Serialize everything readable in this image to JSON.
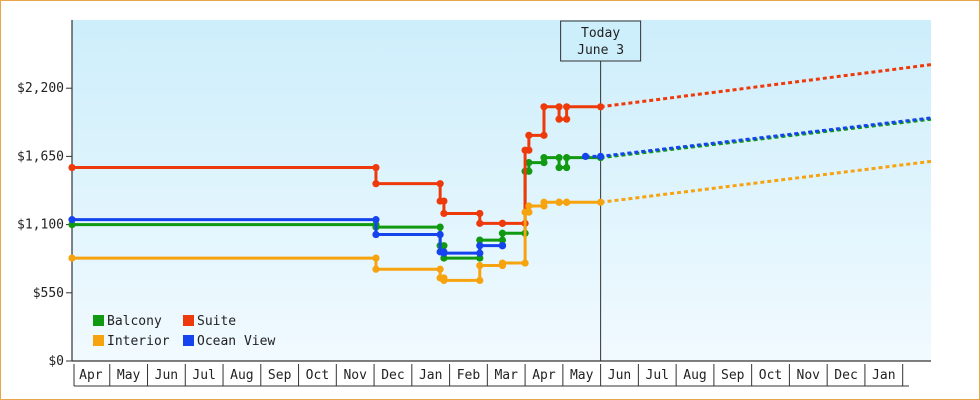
{
  "chart_data": {
    "type": "line",
    "title": "",
    "xlabel": "",
    "ylabel": "",
    "ylim": [
      0,
      2750
    ],
    "y_ticks": [
      {
        "value": 0,
        "label": "$0"
      },
      {
        "value": 550,
        "label": "$550"
      },
      {
        "value": 1100,
        "label": "$1,100"
      },
      {
        "value": 1650,
        "label": "$1,650"
      },
      {
        "value": 2200,
        "label": "$2,200"
      }
    ],
    "x_range": [
      0,
      22.75
    ],
    "x_ticks": [
      {
        "label": "Apr",
        "x": 0.5
      },
      {
        "label": "May",
        "x": 1.5
      },
      {
        "label": "Jun",
        "x": 2.5
      },
      {
        "label": "Jul",
        "x": 3.5
      },
      {
        "label": "Aug",
        "x": 4.5
      },
      {
        "label": "Sep",
        "x": 5.5
      },
      {
        "label": "Oct",
        "x": 6.5
      },
      {
        "label": "Nov",
        "x": 7.5
      },
      {
        "label": "Dec",
        "x": 8.5
      },
      {
        "label": "Jan",
        "x": 9.5
      },
      {
        "label": "Feb",
        "x": 10.5
      },
      {
        "label": "Mar",
        "x": 11.5
      },
      {
        "label": "Apr",
        "x": 12.5
      },
      {
        "label": "May",
        "x": 13.5
      },
      {
        "label": "Jun",
        "x": 14.5
      },
      {
        "label": "Jul",
        "x": 15.5
      },
      {
        "label": "Aug",
        "x": 16.5
      },
      {
        "label": "Sep",
        "x": 17.5
      },
      {
        "label": "Oct",
        "x": 18.5
      },
      {
        "label": "Nov",
        "x": 19.5
      },
      {
        "label": "Dec",
        "x": 20.5
      },
      {
        "label": "Jan",
        "x": 21.5
      }
    ],
    "today": {
      "x": 14.0,
      "line1": "Today",
      "line2": "June 3"
    },
    "grid": false,
    "legend": {
      "position": "bottom-left"
    },
    "series": [
      {
        "name": "Balcony",
        "color": "#119911",
        "points": [
          [
            0,
            1100
          ],
          [
            8.05,
            1100
          ],
          [
            8.05,
            1080
          ],
          [
            9.75,
            1080
          ],
          [
            9.75,
            930
          ],
          [
            9.85,
            930
          ],
          [
            9.85,
            830
          ],
          [
            10.8,
            830
          ],
          [
            10.8,
            975
          ],
          [
            11.4,
            975
          ],
          [
            11.4,
            1030
          ],
          [
            12.0,
            1030
          ],
          [
            12.0,
            1530
          ],
          [
            12.1,
            1530
          ],
          [
            12.1,
            1600
          ],
          [
            12.5,
            1600
          ],
          [
            12.5,
            1640
          ],
          [
            12.9,
            1640
          ],
          [
            12.9,
            1560
          ],
          [
            13.1,
            1560
          ],
          [
            13.1,
            1640
          ],
          [
            14.0,
            1640
          ]
        ],
        "projection": [
          [
            14.0,
            1640
          ],
          [
            22.75,
            1950
          ]
        ]
      },
      {
        "name": "Suite",
        "color": "#ee3a0a",
        "points": [
          [
            0,
            1560
          ],
          [
            8.05,
            1560
          ],
          [
            8.05,
            1430
          ],
          [
            9.75,
            1430
          ],
          [
            9.75,
            1290
          ],
          [
            9.85,
            1290
          ],
          [
            9.85,
            1190
          ],
          [
            10.8,
            1190
          ],
          [
            10.8,
            1110
          ],
          [
            11.4,
            1110
          ],
          [
            11.4,
            1110
          ],
          [
            12.0,
            1110
          ],
          [
            12.0,
            1700
          ],
          [
            12.1,
            1700
          ],
          [
            12.1,
            1820
          ],
          [
            12.5,
            1820
          ],
          [
            12.5,
            2050
          ],
          [
            12.9,
            2050
          ],
          [
            12.9,
            1950
          ],
          [
            13.1,
            1950
          ],
          [
            13.1,
            2050
          ],
          [
            14.0,
            2050
          ]
        ],
        "projection": [
          [
            14.0,
            2050
          ],
          [
            22.75,
            2390
          ]
        ]
      },
      {
        "name": "Interior",
        "color": "#f7a30f",
        "points": [
          [
            0,
            830
          ],
          [
            8.05,
            830
          ],
          [
            8.05,
            740
          ],
          [
            9.75,
            740
          ],
          [
            9.75,
            670
          ],
          [
            9.85,
            670
          ],
          [
            9.85,
            650
          ],
          [
            10.8,
            650
          ],
          [
            10.8,
            770
          ],
          [
            11.4,
            770
          ],
          [
            11.4,
            790
          ],
          [
            12.0,
            790
          ],
          [
            12.0,
            1200
          ],
          [
            12.1,
            1200
          ],
          [
            12.1,
            1250
          ],
          [
            12.5,
            1250
          ],
          [
            12.5,
            1280
          ],
          [
            12.9,
            1280
          ],
          [
            12.9,
            1280
          ],
          [
            13.1,
            1280
          ],
          [
            13.1,
            1280
          ],
          [
            14.0,
            1280
          ]
        ],
        "projection": [
          [
            14.0,
            1280
          ],
          [
            22.75,
            1610
          ]
        ]
      },
      {
        "name": "Ocean View",
        "color": "#1544ee",
        "points": [
          [
            0,
            1140
          ],
          [
            8.05,
            1140
          ],
          [
            8.05,
            1020
          ],
          [
            9.75,
            1020
          ],
          [
            9.75,
            880
          ],
          [
            9.85,
            880
          ],
          [
            9.85,
            870
          ],
          [
            10.8,
            870
          ],
          [
            10.8,
            930
          ],
          [
            11.4,
            930
          ],
          [
            11.4,
            930
          ],
          [
            11.4,
            930
          ]
        ],
        "projection": [
          [
            13.6,
            1650
          ],
          [
            14.0,
            1650
          ],
          [
            22.75,
            1960
          ]
        ]
      }
    ]
  }
}
